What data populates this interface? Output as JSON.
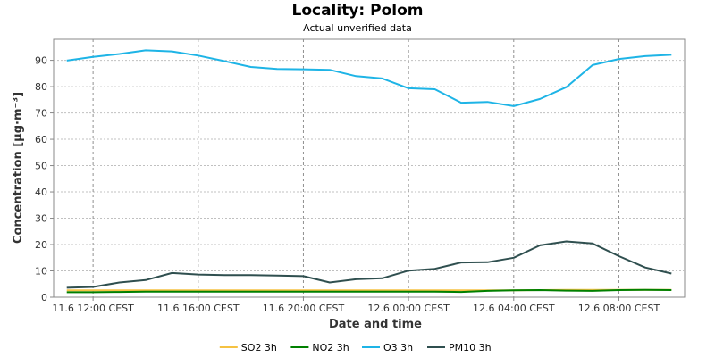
{
  "chart_data": {
    "type": "line",
    "title": "Locality: Polom",
    "subtitle": "Actual unverified data",
    "xlabel": "Date and time",
    "ylabel": "Concentration [µg·m⁻³]",
    "ylim": [
      0,
      98
    ],
    "yticks": [
      0,
      10,
      20,
      30,
      40,
      50,
      60,
      70,
      80,
      90
    ],
    "x": [
      "11.6 11:00",
      "11.6 12:00",
      "11.6 13:00",
      "11.6 14:00",
      "11.6 15:00",
      "11.6 16:00",
      "11.6 17:00",
      "11.6 18:00",
      "11.6 19:00",
      "11.6 20:00",
      "11.6 21:00",
      "11.6 22:00",
      "11.6 23:00",
      "12.6 00:00",
      "12.6 01:00",
      "12.6 02:00",
      "12.6 03:00",
      "12.6 04:00",
      "12.6 05:00",
      "12.6 06:00",
      "12.6 07:00",
      "12.6 08:00",
      "12.6 09:00",
      "12.6 10:00"
    ],
    "xlim": [
      "11.6 10:30",
      "12.6 10:30"
    ],
    "xticks": [
      {
        "x": "11.6 12:00",
        "label": "11.6 12:00 CEST"
      },
      {
        "x": "11.6 16:00",
        "label": "11.6 16:00 CEST"
      },
      {
        "x": "11.6 20:00",
        "label": "11.6 20:00 CEST"
      },
      {
        "x": "12.6 00:00",
        "label": "12.6 00:00 CEST"
      },
      {
        "x": "12.6 04:00",
        "label": "12.6 04:00 CEST"
      },
      {
        "x": "12.6 08:00",
        "label": "12.6 08:00 CEST"
      }
    ],
    "grid": true,
    "legend_position": "bottom",
    "series": [
      {
        "name": "SO2 3h",
        "color": "#f5c242",
        "values": [
          2.6,
          2.6,
          2.6,
          2.6,
          2.6,
          2.6,
          2.6,
          2.6,
          2.6,
          2.6,
          2.6,
          2.6,
          2.6,
          2.6,
          2.6,
          2.6,
          2.6,
          2.6,
          2.7,
          2.8,
          2.8,
          2.8,
          2.8,
          2.8
        ]
      },
      {
        "name": "NO2 3h",
        "color": "#008000",
        "values": [
          1.9,
          1.9,
          2.0,
          2.1,
          2.1,
          2.1,
          2.1,
          2.1,
          2.1,
          2.1,
          2.1,
          2.1,
          2.1,
          2.1,
          2.1,
          2.0,
          2.4,
          2.6,
          2.7,
          2.5,
          2.4,
          2.7,
          2.8,
          2.7
        ]
      },
      {
        "name": "O3 3h",
        "color": "#1eb4e6",
        "values": [
          89.9,
          91.3,
          92.4,
          93.8,
          93.4,
          91.8,
          89.7,
          87.5,
          86.7,
          86.6,
          86.4,
          84.0,
          83.1,
          79.4,
          79.0,
          73.9,
          74.2,
          72.6,
          75.3,
          79.8,
          88.2,
          90.5,
          91.6,
          92.1
        ]
      },
      {
        "name": "PM10 3h",
        "color": "#2f4f4f",
        "values": [
          3.6,
          3.9,
          5.6,
          6.5,
          9.2,
          8.6,
          8.4,
          8.4,
          8.2,
          8.0,
          5.6,
          6.8,
          7.2,
          10.1,
          10.8,
          13.2,
          13.3,
          15.0,
          19.7,
          21.2,
          20.4,
          15.6,
          11.3,
          9.0
        ]
      }
    ]
  }
}
